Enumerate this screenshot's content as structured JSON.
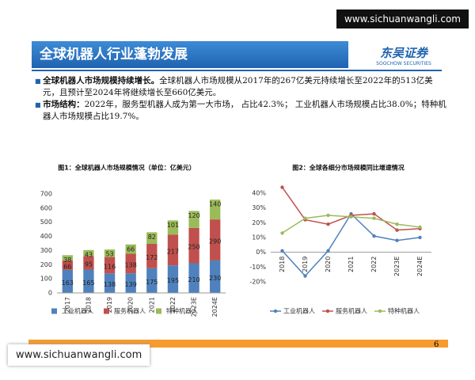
{
  "watermark_top": "www.sichuanwangli.com",
  "watermark_bottom": "www.sichuanwangli.com",
  "header": {
    "title": "全球机器人行业蓬勃发展",
    "logo": "东吴证券",
    "logo_en": "SOOCHOW SECURITIES"
  },
  "bullets": [
    {
      "label": "全球机器人市场规模持续增长。",
      "text": "全球机器人市场规模从2017年的267亿美元持续增长至2022年的513亿美元，且预计至2024年将继续增长至660亿美元。"
    },
    {
      "label": "市场结构：",
      "text": "2022年，服务型机器人成为第一大市场， 占比42.3%； 工业机器人市场规模占比38.0%；特种机器人市场规模占比19.7%。"
    }
  ],
  "page_number": "6",
  "chart_data": [
    {
      "type": "bar",
      "stacked": true,
      "title": "图1：全球机器人市场规模情况（单位：亿美元）",
      "categories": [
        "2017",
        "2018",
        "2019",
        "2020",
        "2021",
        "2022",
        "2023E",
        "2024E"
      ],
      "series": [
        {
          "name": "工业机器人",
          "color": "#4f81bd",
          "values": [
            163,
            165,
            138,
            139,
            175,
            195,
            210,
            230
          ]
        },
        {
          "name": "服务机器人",
          "color": "#c0504d",
          "values": [
            66,
            95,
            116,
            138,
            172,
            217,
            250,
            290
          ]
        },
        {
          "name": "特种机器人",
          "color": "#9bbb59",
          "values": [
            38,
            43,
            53,
            66,
            82,
            101,
            120,
            140
          ]
        }
      ],
      "ylim": [
        0,
        700
      ],
      "yticks": [
        0,
        100,
        200,
        300,
        400,
        500,
        600,
        700
      ],
      "grid": false,
      "legend": "bottom"
    },
    {
      "type": "line",
      "title": "图2：全球各细分市场规模同比增速情况",
      "categories": [
        "2018",
        "2019",
        "2020",
        "2021",
        "2022",
        "2023E",
        "2024E"
      ],
      "series": [
        {
          "name": "工业机器人",
          "color": "#4f81bd",
          "values": [
            1,
            -16,
            1,
            26,
            11,
            8,
            10
          ]
        },
        {
          "name": "服务机器人",
          "color": "#c0504d",
          "values": [
            44,
            22,
            19,
            25,
            26,
            15,
            16
          ]
        },
        {
          "name": "特种机器人",
          "color": "#9bbb59",
          "values": [
            13,
            23,
            25,
            24,
            23,
            19,
            17
          ]
        }
      ],
      "ylim": [
        -20,
        40
      ],
      "yticks": [
        {
          "value": -20,
          "label": "-20%"
        },
        {
          "value": -10,
          "label": "-10%"
        },
        {
          "value": 0,
          "label": "0%"
        },
        {
          "value": 10,
          "label": "10%"
        },
        {
          "value": 20,
          "label": "20%"
        },
        {
          "value": 30,
          "label": "30%"
        },
        {
          "value": 40,
          "label": "40%"
        }
      ],
      "grid": false,
      "legend": "bottom"
    }
  ]
}
